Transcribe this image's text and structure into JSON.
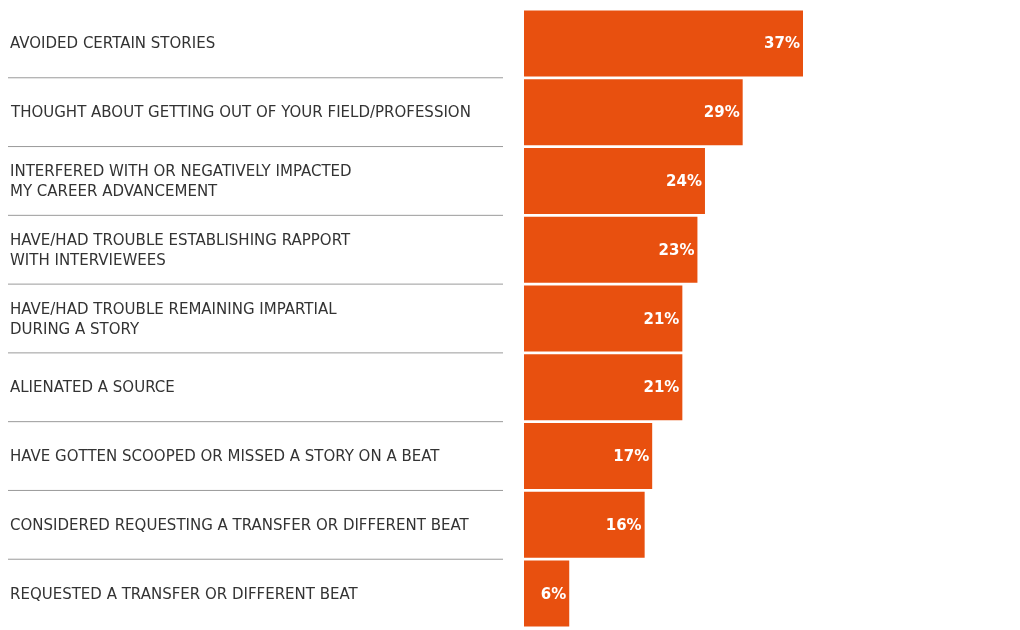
{
  "chart_data": {
    "type": "bar",
    "orientation": "horizontal",
    "categories": [
      "AVOIDED CERTAIN STORIES",
      "THOUGHT ABOUT GETTING OUT OF YOUR FIELD/PROFESSION",
      "INTERFERED WITH OR NEGATIVELY IMPACTED\nMY CAREER ADVANCEMENT",
      "HAVE/HAD TROUBLE ESTABLISHING RAPPORT\nWITH INTERVIEWEES",
      "HAVE/HAD TROUBLE REMAINING IMPARTIAL\nDURING A STORY",
      "ALIENATED A SOURCE",
      "HAVE GOTTEN SCOOPED OR MISSED A STORY ON A BEAT",
      "CONSIDERED REQUESTING A TRANSFER OR DIFFERENT BEAT",
      "REQUESTED A TRANSFER OR DIFFERENT BEAT"
    ],
    "values": [
      37,
      29,
      24,
      23,
      21,
      21,
      17,
      16,
      6
    ],
    "value_labels": [
      "37%",
      "29%",
      "24%",
      "23%",
      "21%",
      "21%",
      "17%",
      "16%",
      "6%"
    ],
    "color": "#e8500f"
  }
}
